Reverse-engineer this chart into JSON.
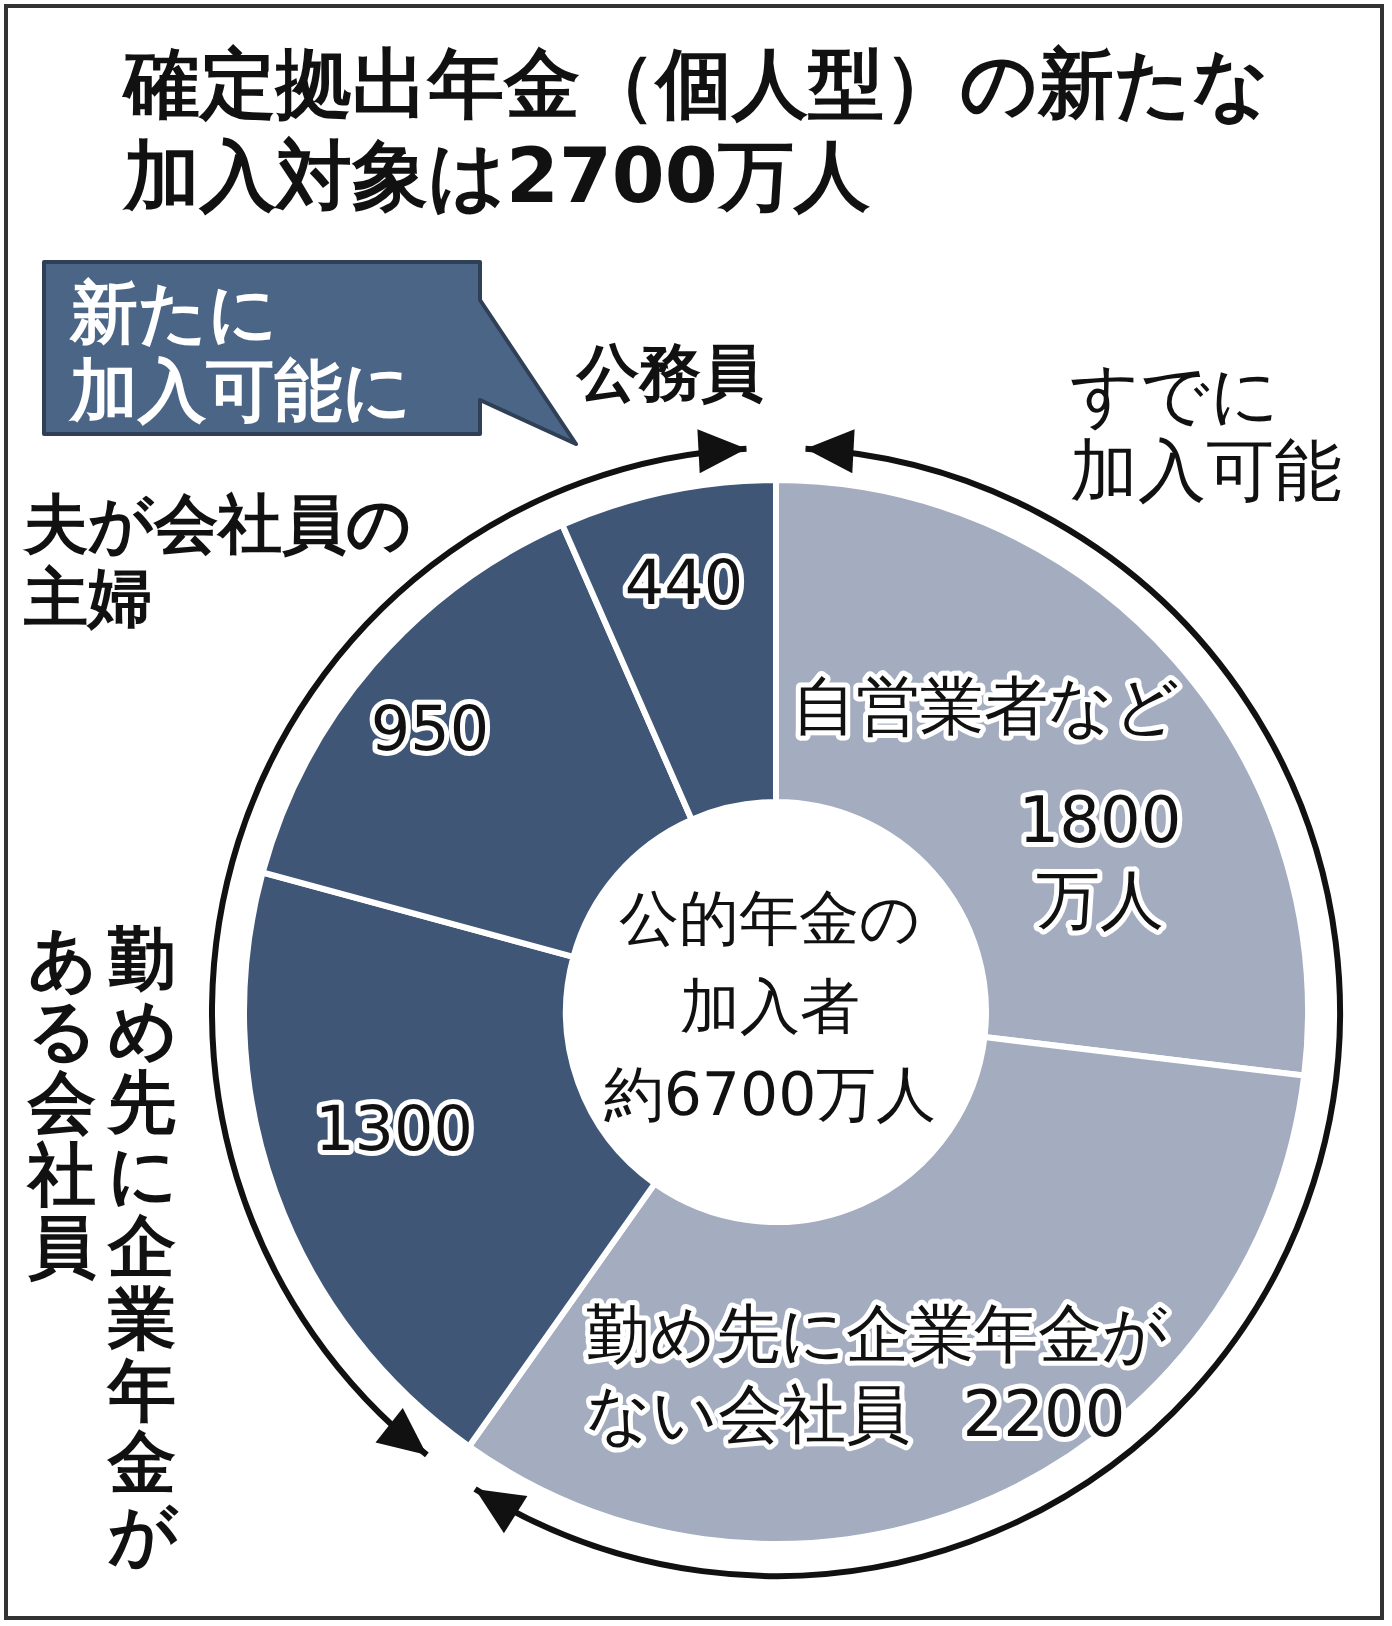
{
  "chart_data": {
    "type": "donut",
    "title": "確定拠出年金（個人型）の新たな加入対象は2700万人",
    "categories": [
      "自営業者など",
      "勤め先に企業年金がない会社員",
      "勤め先に企業年金がある会社員",
      "夫が会社員の主婦",
      "公務員"
    ],
    "values": [
      1800,
      2200,
      1300,
      950,
      440
    ],
    "colors": [
      "#a4acbf",
      "#a4acbf",
      "#3f5677",
      "#3f5677",
      "#3f5677"
    ],
    "value_labels": [
      "1800万人",
      "2200",
      "1300",
      "950",
      "440"
    ],
    "annotations": [
      "公的年金の加入者約6700万人",
      "新たに加入可能に",
      "すでに加入可能"
    ]
  }
}
